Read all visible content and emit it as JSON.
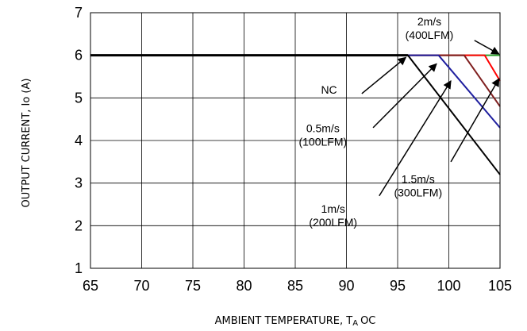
{
  "chart_data": {
    "type": "line",
    "xlabel": "AMBIENT TEMPERATURE, T",
    "xlabel_sub": "A",
    "xlabel_unit": "OC",
    "ylabel": "OUTPUT CURRENT, Io (A)",
    "xlim": [
      65,
      105
    ],
    "ylim": [
      1,
      7
    ],
    "x_ticks": [
      "65",
      "70",
      "75",
      "80",
      "85",
      "90",
      "95",
      "100",
      "105"
    ],
    "y_ticks": [
      "1",
      "2",
      "3",
      "4",
      "5",
      "6",
      "7"
    ],
    "grid": true,
    "series": [
      {
        "color": "#000000",
        "x": [
          65,
          96,
          105
        ],
        "y": [
          6,
          6,
          3.2
        ]
      },
      {
        "color": "#1f1f9f",
        "x": [
          65,
          99,
          105
        ],
        "y": [
          6,
          6,
          4.3
        ]
      },
      {
        "color": "#7f1f1f",
        "x": [
          65,
          101.5,
          105
        ],
        "y": [
          6,
          6,
          4.8
        ]
      },
      {
        "color": "#ff0000",
        "x": [
          65,
          103.5,
          105
        ],
        "y": [
          6,
          6,
          5.4
        ]
      },
      {
        "color": "#2ca02c",
        "x": [
          65,
          105
        ],
        "y": [
          6,
          6
        ]
      }
    ],
    "annotations": [
      {
        "lines": [
          "NC"
        ],
        "text_at": [
          88.3,
          5.1
        ],
        "arrow_from": [
          91.5,
          5.1
        ],
        "arrow_to": [
          95.8,
          5.95
        ]
      },
      {
        "lines": [
          "0.5m/s",
          "(100LFM)"
        ],
        "text_at": [
          87.7,
          4.2
        ],
        "arrow_from": [
          92.6,
          4.3
        ],
        "arrow_to": [
          98.8,
          5.8
        ]
      },
      {
        "lines": [
          "1m/s",
          "(200LFM)"
        ],
        "text_at": [
          88.7,
          2.3
        ],
        "arrow_from": [
          93.2,
          2.7
        ],
        "arrow_to": [
          100.2,
          5.4
        ]
      },
      {
        "lines": [
          "1.5m/s",
          "(300LFM)"
        ],
        "text_at": [
          97.0,
          3.0
        ],
        "arrow_from": [
          100.2,
          3.5
        ],
        "arrow_to": [
          104.9,
          5.45
        ]
      },
      {
        "lines": [
          "2m/s",
          "(400LFM)"
        ],
        "text_at": [
          98.1,
          6.7
        ],
        "arrow_from": [
          102.5,
          6.35
        ],
        "arrow_to": [
          104.9,
          6.03
        ]
      }
    ]
  }
}
